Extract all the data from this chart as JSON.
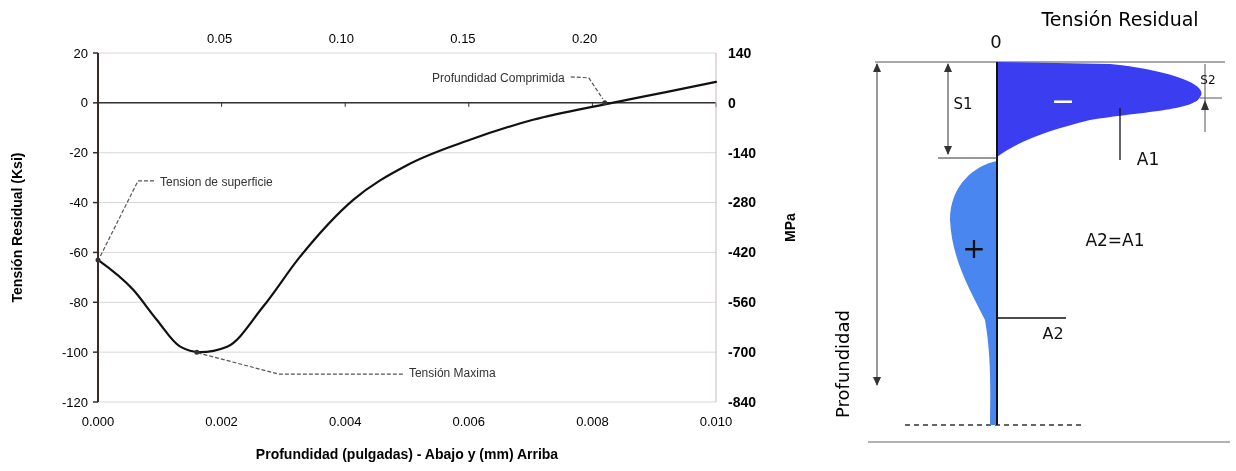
{
  "chart_data": [
    {
      "type": "line",
      "xlabel": "Profundidad (pulgadas) - Abajo y (mm) Arriba",
      "ylabel": "Tensión Residual (Ksi)",
      "y2label": "MPa",
      "xlim": [
        0,
        0.01
      ],
      "xticks": [
        {
          "value": 0,
          "label": "0.000"
        },
        0.002,
        0.004,
        0.006,
        0.008,
        {
          "value": 0.01,
          "label": "0.010"
        }
      ],
      "x2lim": [
        0,
        0.254
      ],
      "x2ticks": [
        0.05,
        {
          "value": 0.1,
          "label": "0.10"
        },
        0.15,
        {
          "value": 0.2,
          "label": "0.20"
        }
      ],
      "ylim": [
        -120,
        20
      ],
      "yticks": [
        -120,
        -100,
        -80,
        -60,
        -40,
        -20,
        0,
        20
      ],
      "y2lim": [
        -840,
        140
      ],
      "y2ticks": [
        -840,
        -700,
        -560,
        -420,
        -280,
        -140,
        0,
        140
      ],
      "grid": "y",
      "marker": "none",
      "line_style": "solid",
      "ref_lines": [
        {
          "axis": "y",
          "value": 0,
          "color": "#333333"
        }
      ],
      "series": [
        {
          "color": "#111111",
          "x": [
            0,
            0.00057,
            0.00095,
            0.00133,
            0.00165,
            0.00209,
            0.00267,
            0.00327,
            0.00413,
            0.005,
            0.00602,
            0.00704,
            0.00824,
            0.00921,
            0.01
          ],
          "values": [
            -63,
            -75,
            -87,
            -97.8,
            -100,
            -97.8,
            -81.8,
            -61.7,
            -38.9,
            -25,
            -14.8,
            -6.8,
            -0.4,
            4.4,
            8.4
          ]
        }
      ],
      "annotations": [
        {
          "text": "Profundidad Comprimida",
          "x": 0.0082,
          "y": 0
        },
        {
          "text": "Tension de superficie",
          "x": 0,
          "y": -63
        },
        {
          "text": "Tensión Maxima",
          "x": 0.0016,
          "y": -100
        }
      ]
    },
    {
      "type": "other",
      "title": "Tensión Residual",
      "annotations": [
        "0",
        "S1",
        "S2",
        "—",
        "A1",
        "+",
        "A2=A1",
        "A2",
        "Profundidad"
      ]
    }
  ]
}
